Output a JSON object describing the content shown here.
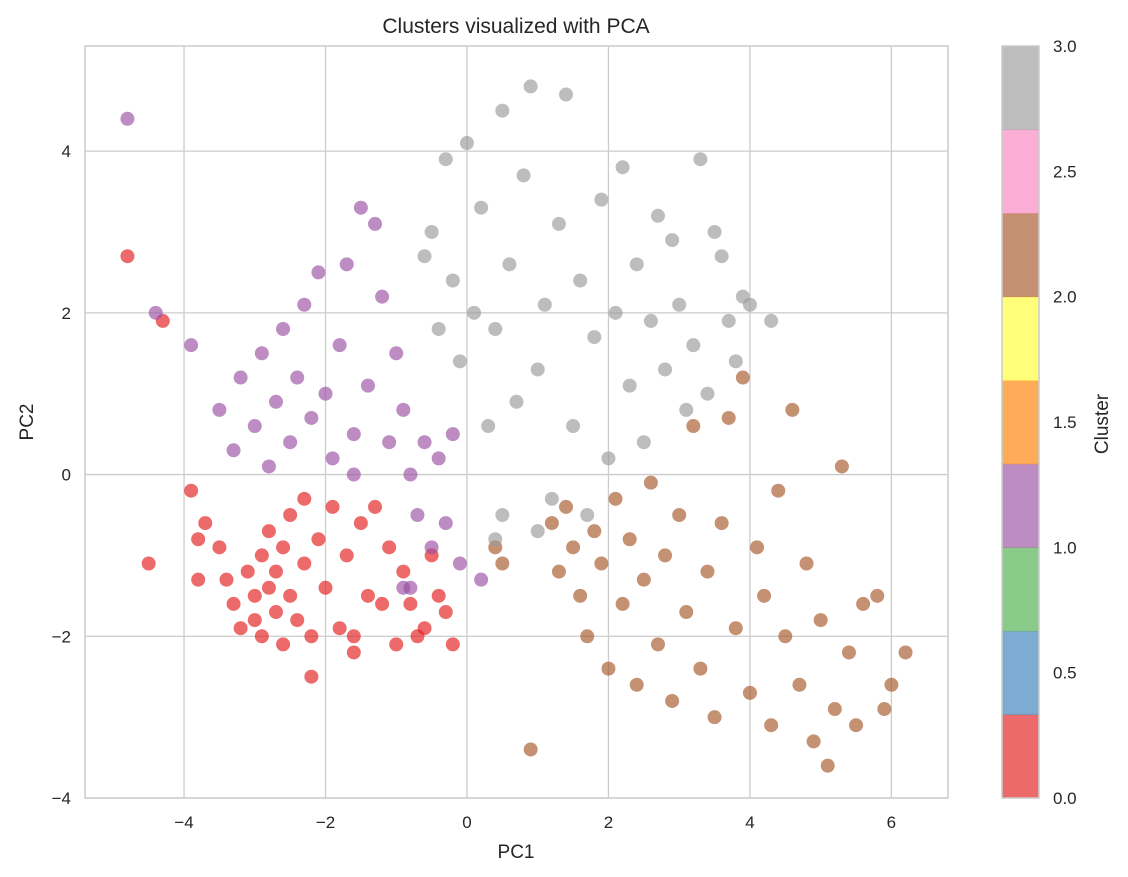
{
  "chart_data": {
    "type": "scatter",
    "title": "Clusters visualized with PCA",
    "xlabel": "PC1",
    "ylabel": "PC2",
    "xlim": [
      -5.4,
      6.8
    ],
    "ylim": [
      -4.0,
      5.3
    ],
    "x_ticks": [
      -4,
      -2,
      0,
      2,
      4,
      6
    ],
    "x_tick_labels": [
      "−4",
      "−2",
      "0",
      "2",
      "4",
      "6"
    ],
    "y_ticks": [
      -4,
      -2,
      0,
      2,
      4
    ],
    "y_tick_labels": [
      "−4",
      "−2",
      "0",
      "2",
      "4"
    ],
    "grid": true,
    "colorbar": {
      "label": "Cluster",
      "range": [
        0.0,
        3.0
      ],
      "ticks": [
        0.0,
        0.5,
        1.0,
        1.5,
        2.0,
        2.5,
        3.0
      ],
      "tick_labels": [
        "0.0",
        "0.5",
        "1.0",
        "1.5",
        "2.0",
        "2.5",
        "3.0"
      ],
      "colors": [
        "#e41a1c",
        "#377eb8",
        "#4daf4a",
        "#984ea3",
        "#ff7f00",
        "#ffff33",
        "#a65628",
        "#f781bf",
        "#999999"
      ]
    },
    "series": [
      {
        "cluster": 0,
        "color": "#e41a1c",
        "points": [
          [
            -4.8,
            2.7
          ],
          [
            -4.3,
            1.9
          ],
          [
            -4.5,
            -1.1
          ],
          [
            -3.9,
            -0.2
          ],
          [
            -3.8,
            -0.8
          ],
          [
            -3.7,
            -0.6
          ],
          [
            -3.5,
            -0.9
          ],
          [
            -3.4,
            -1.3
          ],
          [
            -3.3,
            -1.6
          ],
          [
            -3.2,
            -1.9
          ],
          [
            -3.1,
            -1.2
          ],
          [
            -3.0,
            -1.5
          ],
          [
            -3.0,
            -1.8
          ],
          [
            -2.9,
            -2.0
          ],
          [
            -2.9,
            -1.0
          ],
          [
            -2.8,
            -1.4
          ],
          [
            -2.8,
            -0.7
          ],
          [
            -2.7,
            -1.7
          ],
          [
            -2.7,
            -1.2
          ],
          [
            -2.6,
            -2.1
          ],
          [
            -2.6,
            -0.9
          ],
          [
            -2.5,
            -1.5
          ],
          [
            -2.5,
            -0.5
          ],
          [
            -2.4,
            -1.8
          ],
          [
            -2.3,
            -1.1
          ],
          [
            -2.3,
            -0.3
          ],
          [
            -2.2,
            -2.0
          ],
          [
            -2.1,
            -0.8
          ],
          [
            -2.0,
            -1.4
          ],
          [
            -1.9,
            -0.4
          ],
          [
            -1.8,
            -1.9
          ],
          [
            -1.7,
            -1.0
          ],
          [
            -1.6,
            -2.0
          ],
          [
            -1.5,
            -0.6
          ],
          [
            -1.4,
            -1.5
          ],
          [
            -1.3,
            -0.4
          ],
          [
            -1.2,
            -1.6
          ],
          [
            -1.1,
            -0.9
          ],
          [
            -1.0,
            -2.1
          ],
          [
            -0.9,
            -1.2
          ],
          [
            -0.8,
            -1.6
          ],
          [
            -0.7,
            -2.0
          ],
          [
            -0.6,
            -1.9
          ],
          [
            -0.5,
            -1.0
          ],
          [
            -0.4,
            -1.5
          ],
          [
            -0.3,
            -1.7
          ],
          [
            -0.2,
            -2.1
          ],
          [
            -2.2,
            -2.5
          ],
          [
            -1.6,
            -2.2
          ],
          [
            -3.8,
            -1.3
          ]
        ]
      },
      {
        "cluster": 1,
        "color": "#984ea3",
        "points": [
          [
            -4.8,
            4.4
          ],
          [
            -4.4,
            2.0
          ],
          [
            -3.9,
            1.6
          ],
          [
            -3.5,
            0.8
          ],
          [
            -3.3,
            0.3
          ],
          [
            -3.2,
            1.2
          ],
          [
            -3.0,
            0.6
          ],
          [
            -2.9,
            1.5
          ],
          [
            -2.8,
            0.1
          ],
          [
            -2.7,
            0.9
          ],
          [
            -2.6,
            1.8
          ],
          [
            -2.5,
            0.4
          ],
          [
            -2.4,
            1.2
          ],
          [
            -2.3,
            2.1
          ],
          [
            -2.2,
            0.7
          ],
          [
            -2.1,
            2.5
          ],
          [
            -2.0,
            1.0
          ],
          [
            -1.9,
            0.2
          ],
          [
            -1.8,
            1.6
          ],
          [
            -1.7,
            2.6
          ],
          [
            -1.6,
            0.5
          ],
          [
            -1.5,
            3.3
          ],
          [
            -1.4,
            1.1
          ],
          [
            -1.3,
            3.1
          ],
          [
            -1.2,
            2.2
          ],
          [
            -1.1,
            0.4
          ],
          [
            -1.0,
            1.5
          ],
          [
            -0.9,
            0.8
          ],
          [
            -0.8,
            0.0
          ],
          [
            -0.7,
            -0.5
          ],
          [
            -0.6,
            0.4
          ],
          [
            -0.5,
            -0.9
          ],
          [
            -0.4,
            0.2
          ],
          [
            -0.3,
            -0.6
          ],
          [
            -0.2,
            0.5
          ],
          [
            -0.1,
            -1.1
          ],
          [
            0.2,
            -1.3
          ],
          [
            -0.9,
            -1.4
          ],
          [
            -0.8,
            -1.4
          ],
          [
            -1.6,
            0.0
          ]
        ]
      },
      {
        "cluster": 2,
        "color": "#a65628",
        "points": [
          [
            0.4,
            -0.9
          ],
          [
            0.5,
            -1.1
          ],
          [
            0.9,
            -3.4
          ],
          [
            1.2,
            -0.6
          ],
          [
            1.3,
            -1.2
          ],
          [
            1.4,
            -0.4
          ],
          [
            1.5,
            -0.9
          ],
          [
            1.6,
            -1.5
          ],
          [
            1.7,
            -2.0
          ],
          [
            1.8,
            -0.7
          ],
          [
            1.9,
            -1.1
          ],
          [
            2.0,
            -2.4
          ],
          [
            2.1,
            -0.3
          ],
          [
            2.2,
            -1.6
          ],
          [
            2.3,
            -0.8
          ],
          [
            2.4,
            -2.6
          ],
          [
            2.5,
            -1.3
          ],
          [
            2.6,
            -0.1
          ],
          [
            2.7,
            -2.1
          ],
          [
            2.8,
            -1.0
          ],
          [
            2.9,
            -2.8
          ],
          [
            3.0,
            -0.5
          ],
          [
            3.1,
            -1.7
          ],
          [
            3.2,
            0.6
          ],
          [
            3.3,
            -2.4
          ],
          [
            3.4,
            -1.2
          ],
          [
            3.5,
            -3.0
          ],
          [
            3.6,
            -0.6
          ],
          [
            3.7,
            0.7
          ],
          [
            3.8,
            -1.9
          ],
          [
            3.9,
            1.2
          ],
          [
            4.0,
            -2.7
          ],
          [
            4.1,
            -0.9
          ],
          [
            4.2,
            -1.5
          ],
          [
            4.3,
            -3.1
          ],
          [
            4.4,
            -0.2
          ],
          [
            4.5,
            -2.0
          ],
          [
            4.6,
            0.8
          ],
          [
            4.7,
            -2.6
          ],
          [
            4.8,
            -1.1
          ],
          [
            4.9,
            -3.3
          ],
          [
            5.0,
            -1.8
          ],
          [
            5.1,
            -3.6
          ],
          [
            5.2,
            -2.9
          ],
          [
            5.3,
            0.1
          ],
          [
            5.4,
            -2.2
          ],
          [
            5.5,
            -3.1
          ],
          [
            5.6,
            -1.6
          ],
          [
            5.8,
            -1.5
          ],
          [
            5.9,
            -2.9
          ],
          [
            6.0,
            -2.6
          ],
          [
            6.2,
            -2.2
          ]
        ]
      },
      {
        "cluster": 3,
        "color": "#999999",
        "points": [
          [
            -0.6,
            2.7
          ],
          [
            -0.5,
            3.0
          ],
          [
            -0.4,
            1.8
          ],
          [
            -0.3,
            3.9
          ],
          [
            -0.2,
            2.4
          ],
          [
            -0.1,
            1.4
          ],
          [
            0.0,
            4.1
          ],
          [
            0.1,
            2.0
          ],
          [
            0.2,
            3.3
          ],
          [
            0.3,
            0.6
          ],
          [
            0.4,
            1.8
          ],
          [
            0.5,
            4.5
          ],
          [
            0.6,
            2.6
          ],
          [
            0.7,
            0.9
          ],
          [
            0.8,
            3.7
          ],
          [
            0.9,
            4.8
          ],
          [
            1.0,
            1.3
          ],
          [
            1.1,
            2.1
          ],
          [
            1.2,
            -0.3
          ],
          [
            1.3,
            3.1
          ],
          [
            1.4,
            4.7
          ],
          [
            1.5,
            0.6
          ],
          [
            1.6,
            2.4
          ],
          [
            1.7,
            -0.5
          ],
          [
            1.8,
            1.7
          ],
          [
            1.9,
            3.4
          ],
          [
            2.0,
            0.2
          ],
          [
            2.1,
            2.0
          ],
          [
            2.2,
            3.8
          ],
          [
            2.3,
            1.1
          ],
          [
            2.4,
            2.6
          ],
          [
            2.5,
            0.4
          ],
          [
            2.6,
            1.9
          ],
          [
            2.7,
            3.2
          ],
          [
            2.8,
            1.3
          ],
          [
            2.9,
            2.9
          ],
          [
            3.0,
            2.1
          ],
          [
            3.1,
            0.8
          ],
          [
            3.2,
            1.6
          ],
          [
            3.3,
            3.9
          ],
          [
            3.4,
            1.0
          ],
          [
            3.5,
            3.0
          ],
          [
            3.6,
            2.7
          ],
          [
            3.7,
            1.9
          ],
          [
            3.8,
            1.4
          ],
          [
            3.9,
            2.2
          ],
          [
            4.0,
            2.1
          ],
          [
            4.3,
            1.9
          ],
          [
            1.0,
            -0.7
          ],
          [
            0.4,
            -0.8
          ],
          [
            0.5,
            -0.5
          ]
        ]
      }
    ]
  }
}
